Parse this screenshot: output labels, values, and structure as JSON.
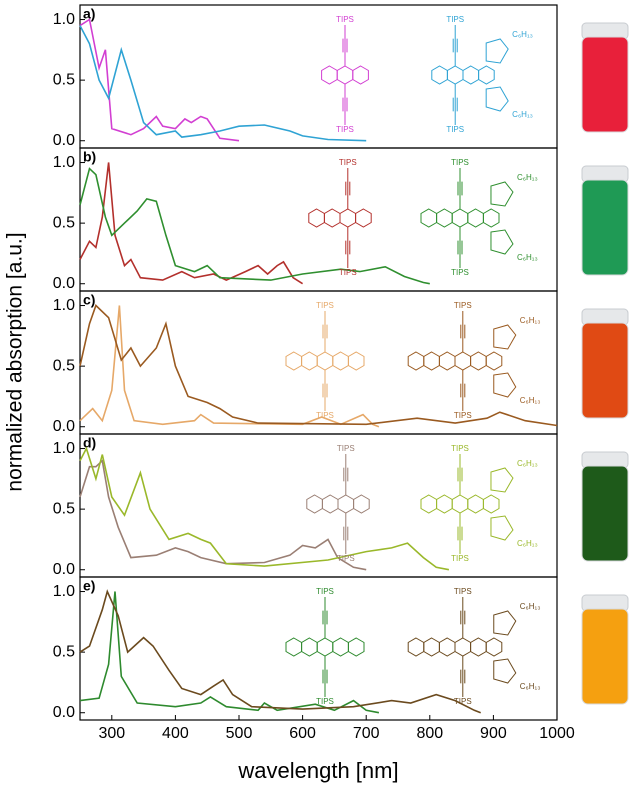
{
  "ylabel": "normalized absorption [a.u.]",
  "structures": [
    {
      "left": [
        "TIPS",
        "TIPS"
      ],
      "right": [
        "TIPS",
        "TIPS",
        "C₆H₁₃",
        "C₆H₁₃"
      ]
    },
    {
      "left": [
        "TIPS",
        "TIPS"
      ],
      "right": [
        "TIPS",
        "TIPS",
        "C₆H₁₃",
        "C₆H₁₃"
      ]
    },
    {
      "left": [
        "TIPS",
        "TIPS"
      ],
      "right": [
        "TIPS",
        "TIPS",
        "C₆H₁₃",
        "C₆H₁₃"
      ]
    },
    {
      "left": [
        "TIPS",
        "TIPS"
      ],
      "right": [
        "TIPS",
        "TIPS",
        "C₆H₁₃",
        "C₆H₁₃"
      ]
    },
    {
      "left": [
        "TIPS",
        "TIPS"
      ],
      "right": [
        "TIPS",
        "TIPS",
        "C₆H₁₃",
        "C₆H₁₃"
      ]
    }
  ],
  "chart_data": [
    {
      "type": "line",
      "label": "a)",
      "xlim": [
        250,
        1000
      ],
      "ylim": [
        -0.06,
        1.12
      ],
      "yticks": [
        {
          "value": 0,
          "label": "0.0"
        },
        0.5,
        {
          "value": 1,
          "label": "1.0"
        }
      ],
      "series": [
        {
          "color": "#d23fd2",
          "x": [
            250,
            265,
            280,
            290,
            300,
            330,
            350,
            370,
            380,
            400,
            415,
            425,
            440,
            450,
            470,
            500
          ],
          "values": [
            0.95,
            1.0,
            0.6,
            0.75,
            0.1,
            0.05,
            0.1,
            0.2,
            0.12,
            0.1,
            0.18,
            0.15,
            0.2,
            0.18,
            0.02,
            0
          ]
        },
        {
          "color": "#2fa3d4",
          "x": [
            250,
            265,
            280,
            295,
            315,
            330,
            350,
            370,
            400,
            410,
            440,
            470,
            500,
            540,
            580,
            600,
            640,
            700
          ],
          "values": [
            0.95,
            0.8,
            0.5,
            0.35,
            0.75,
            0.5,
            0.15,
            0.05,
            0.08,
            0.03,
            0.05,
            0.08,
            0.12,
            0.13,
            0.08,
            0.04,
            0.01,
            0
          ]
        }
      ]
    },
    {
      "type": "line",
      "label": "b)",
      "xlim": [
        250,
        1000
      ],
      "ylim": [
        -0.06,
        1.12
      ],
      "yticks": [
        {
          "value": 0,
          "label": "0.0"
        },
        0.5,
        {
          "value": 1,
          "label": "1.0"
        }
      ],
      "series": [
        {
          "color": "#b3302c",
          "x": [
            250,
            265,
            275,
            285,
            295,
            305,
            320,
            330,
            345,
            380,
            410,
            430,
            460,
            480,
            510,
            530,
            545,
            560,
            570,
            585,
            600
          ],
          "values": [
            0.2,
            0.35,
            0.3,
            0.55,
            1.0,
            0.4,
            0.15,
            0.2,
            0.05,
            0.03,
            0.1,
            0.05,
            0.08,
            0.03,
            0.1,
            0.15,
            0.08,
            0.15,
            0.18,
            0.05,
            0
          ]
        },
        {
          "color": "#2f8f2f",
          "x": [
            250,
            265,
            275,
            290,
            300,
            320,
            340,
            355,
            370,
            385,
            400,
            430,
            450,
            470,
            550,
            600,
            660,
            690,
            730,
            760,
            790,
            800
          ],
          "values": [
            0.65,
            0.95,
            0.9,
            0.55,
            0.4,
            0.5,
            0.6,
            0.7,
            0.68,
            0.4,
            0.15,
            0.1,
            0.15,
            0.05,
            0.03,
            0.08,
            0.12,
            0.1,
            0.14,
            0.06,
            0.01,
            0
          ]
        }
      ]
    },
    {
      "type": "line",
      "label": "c)",
      "xlim": [
        250,
        1000
      ],
      "ylim": [
        -0.06,
        1.12
      ],
      "yticks": [
        {
          "value": 0,
          "label": "0.0"
        },
        0.5,
        {
          "value": 1,
          "label": "1.0"
        }
      ],
      "series": [
        {
          "color": "#e6a868",
          "x": [
            250,
            270,
            285,
            300,
            312,
            320,
            335,
            380,
            430,
            440,
            460,
            600,
            630,
            660,
            695,
            710,
            720
          ],
          "values": [
            0.05,
            0.15,
            0.05,
            0.3,
            1.0,
            0.3,
            0.05,
            0.02,
            0.05,
            0.1,
            0.03,
            0.02,
            0.08,
            0.02,
            0.1,
            0.02,
            0
          ]
        },
        {
          "color": "#9a5a20",
          "x": [
            250,
            265,
            275,
            295,
            315,
            330,
            345,
            370,
            385,
            400,
            420,
            450,
            470,
            490,
            530,
            700,
            780,
            840,
            890,
            910,
            950,
            1000
          ],
          "values": [
            0.5,
            0.85,
            1.0,
            0.9,
            0.55,
            0.65,
            0.5,
            0.65,
            0.85,
            0.5,
            0.25,
            0.2,
            0.15,
            0.08,
            0.03,
            0.02,
            0.07,
            0.03,
            0.07,
            0.12,
            0.05,
            0.01
          ]
        }
      ]
    },
    {
      "type": "line",
      "label": "d)",
      "xlim": [
        250,
        1000
      ],
      "ylim": [
        -0.06,
        1.12
      ],
      "yticks": [
        {
          "value": 0,
          "label": "0.0"
        },
        0.5,
        {
          "value": 1,
          "label": "1.0"
        }
      ],
      "series": [
        {
          "color": "#9a7f74",
          "x": [
            250,
            265,
            275,
            285,
            295,
            310,
            330,
            370,
            400,
            420,
            440,
            480,
            540,
            580,
            600,
            620,
            640,
            655,
            680,
            700
          ],
          "values": [
            0.6,
            0.85,
            0.85,
            0.9,
            0.6,
            0.35,
            0.1,
            0.12,
            0.18,
            0.15,
            0.1,
            0.05,
            0.06,
            0.12,
            0.2,
            0.18,
            0.25,
            0.1,
            0.02,
            0
          ]
        },
        {
          "color": "#9ab82a",
          "x": [
            250,
            260,
            275,
            285,
            300,
            320,
            345,
            360,
            390,
            420,
            440,
            455,
            480,
            540,
            640,
            700,
            740,
            765,
            790,
            810,
            830
          ],
          "values": [
            0.9,
            1.0,
            0.75,
            0.95,
            0.6,
            0.45,
            0.8,
            0.5,
            0.25,
            0.3,
            0.25,
            0.22,
            0.05,
            0.03,
            0.08,
            0.15,
            0.18,
            0.22,
            0.1,
            0.02,
            0
          ]
        }
      ]
    },
    {
      "type": "line",
      "label": "e)",
      "xlim": [
        250,
        1000
      ],
      "ylim": [
        -0.06,
        1.12
      ],
      "yticks": [
        {
          "value": 0,
          "label": "0.0"
        },
        0.5,
        {
          "value": 1,
          "label": "1.0"
        }
      ],
      "xticks": [
        300,
        400,
        500,
        600,
        700,
        800,
        900,
        1000
      ],
      "xlabel": "wavelength [nm]",
      "series": [
        {
          "color": "#2e8a2e",
          "x": [
            250,
            280,
            295,
            305,
            315,
            340,
            400,
            440,
            455,
            480,
            530,
            540,
            560,
            620,
            650,
            680,
            700,
            720
          ],
          "values": [
            0.1,
            0.12,
            0.4,
            1.0,
            0.3,
            0.08,
            0.05,
            0.08,
            0.13,
            0.05,
            0.02,
            0.08,
            0.02,
            0.07,
            0.02,
            0.1,
            0.02,
            0
          ]
        },
        {
          "color": "#6b4a1e",
          "x": [
            250,
            265,
            285,
            293,
            310,
            325,
            350,
            365,
            390,
            410,
            440,
            460,
            475,
            490,
            520,
            600,
            680,
            740,
            770,
            810,
            840,
            870,
            880
          ],
          "values": [
            0.5,
            0.55,
            0.85,
            1.0,
            0.8,
            0.5,
            0.62,
            0.55,
            0.35,
            0.2,
            0.15,
            0.22,
            0.27,
            0.15,
            0.05,
            0.03,
            0.05,
            0.1,
            0.08,
            0.15,
            0.1,
            0.02,
            0
          ]
        }
      ]
    }
  ]
}
